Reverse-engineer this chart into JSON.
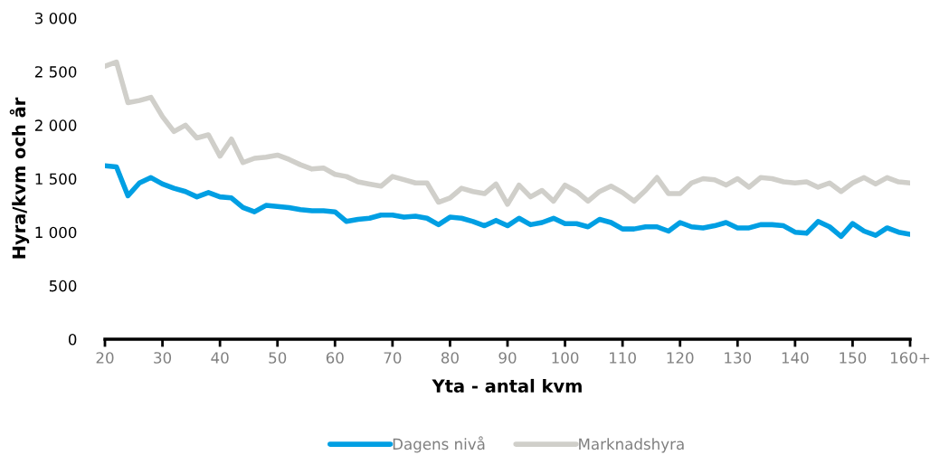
{
  "chart_data": {
    "type": "line",
    "xlabel": "Yta - antal kvm",
    "ylabel": "Hyra/kvm och år",
    "x": [
      20,
      22,
      24,
      26,
      28,
      30,
      32,
      34,
      36,
      38,
      40,
      42,
      44,
      46,
      48,
      50,
      52,
      54,
      56,
      58,
      60,
      62,
      64,
      66,
      68,
      70,
      72,
      74,
      76,
      78,
      80,
      82,
      84,
      86,
      88,
      90,
      92,
      94,
      96,
      98,
      100,
      102,
      104,
      106,
      108,
      110,
      112,
      114,
      116,
      118,
      120,
      122,
      124,
      126,
      128,
      130,
      132,
      134,
      136,
      138,
      140,
      142,
      144,
      146,
      148,
      150,
      152,
      154,
      156,
      158,
      160
    ],
    "series": [
      {
        "name": "Dagens nivå",
        "color": "#009fe3",
        "values": [
          1620,
          1610,
          1340,
          1460,
          1510,
          1450,
          1410,
          1380,
          1330,
          1370,
          1330,
          1320,
          1230,
          1190,
          1250,
          1240,
          1230,
          1210,
          1200,
          1200,
          1190,
          1100,
          1120,
          1130,
          1160,
          1160,
          1140,
          1150,
          1130,
          1070,
          1140,
          1130,
          1100,
          1060,
          1110,
          1060,
          1130,
          1070,
          1090,
          1130,
          1080,
          1080,
          1050,
          1120,
          1090,
          1030,
          1030,
          1050,
          1050,
          1010,
          1090,
          1050,
          1040,
          1060,
          1090,
          1040,
          1040,
          1070,
          1070,
          1060,
          1000,
          990,
          1100,
          1050,
          960,
          1080,
          1010,
          970,
          1040,
          1000,
          980
        ]
      },
      {
        "name": "Marknadshyra",
        "color": "#d0cfca",
        "values": [
          2550,
          2590,
          2210,
          2230,
          2260,
          2080,
          1940,
          2000,
          1880,
          1910,
          1710,
          1870,
          1650,
          1690,
          1700,
          1720,
          1680,
          1630,
          1590,
          1600,
          1540,
          1520,
          1470,
          1450,
          1430,
          1520,
          1490,
          1460,
          1460,
          1280,
          1320,
          1410,
          1380,
          1360,
          1450,
          1260,
          1440,
          1330,
          1390,
          1290,
          1440,
          1380,
          1290,
          1380,
          1430,
          1370,
          1290,
          1390,
          1510,
          1360,
          1360,
          1460,
          1500,
          1490,
          1440,
          1500,
          1420,
          1510,
          1500,
          1470,
          1460,
          1470,
          1420,
          1460,
          1380,
          1460,
          1510,
          1450,
          1510,
          1470,
          1460
        ]
      }
    ],
    "xlim": [
      20,
      160
    ],
    "xticks": [
      20,
      30,
      40,
      50,
      60,
      70,
      80,
      90,
      100,
      110,
      120,
      130,
      140,
      150,
      {
        "value": 160,
        "label": "160+"
      }
    ],
    "ylim": [
      0,
      3000
    ],
    "yticks": [
      0,
      500,
      {
        "value": 1000,
        "label": "1 000"
      },
      {
        "value": 1500,
        "label": "1 500"
      },
      {
        "value": 2000,
        "label": "2 000"
      },
      {
        "value": 2500,
        "label": "2 500"
      },
      {
        "value": 3000,
        "label": "3 000"
      }
    ],
    "grid": false,
    "legend": "bottom",
    "line_style": "solid",
    "marker": "none"
  }
}
